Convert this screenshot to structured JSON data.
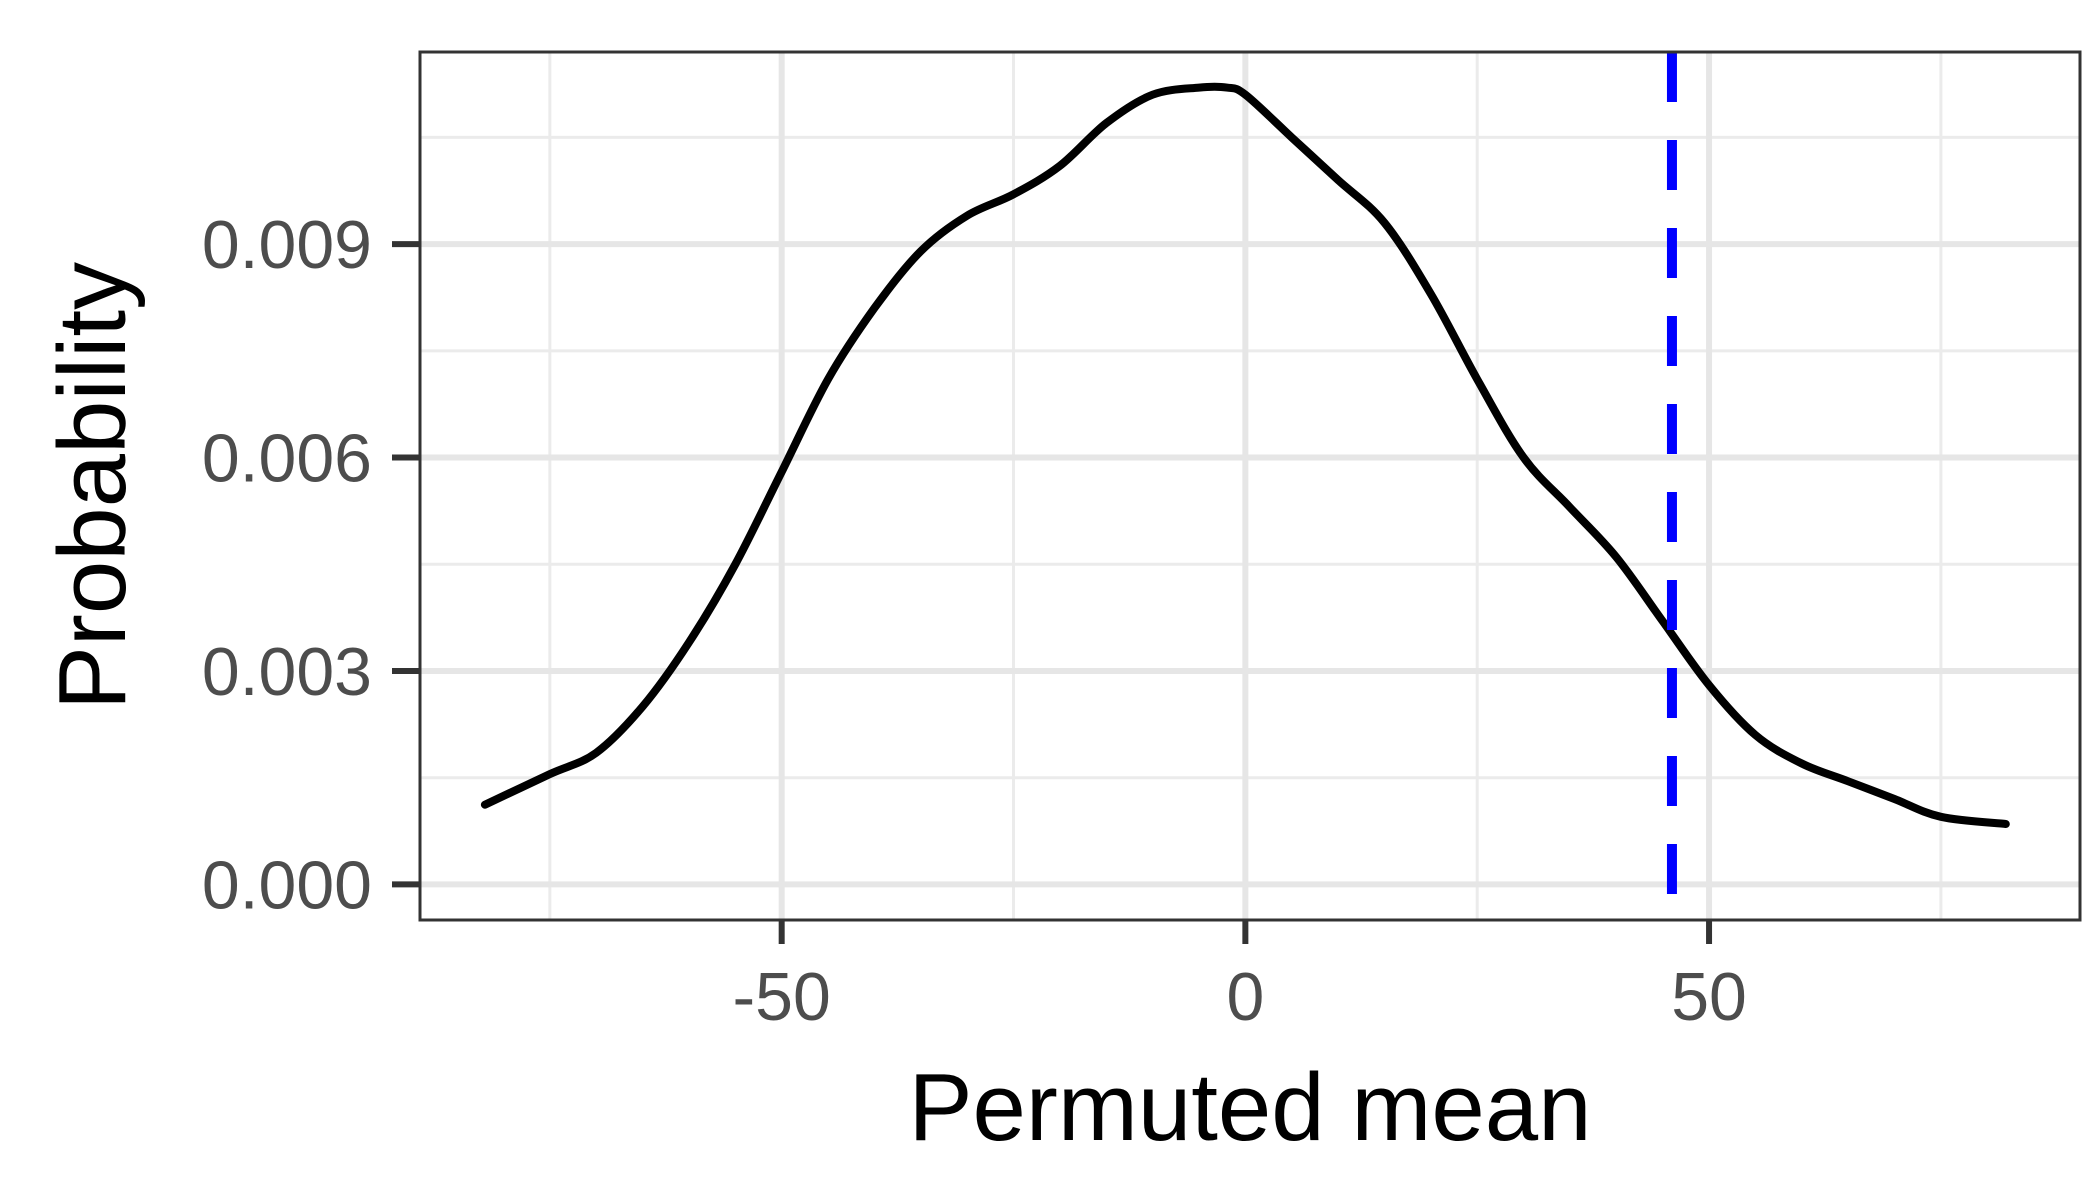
{
  "chart_data": {
    "type": "line",
    "title": "",
    "xlabel": "Permuted mean",
    "ylabel": "Probability",
    "xlim": [
      -89,
      90
    ],
    "ylim": [
      -0.0005,
      0.0117
    ],
    "x_ticks": [
      -50,
      0,
      50
    ],
    "x_tick_labels": [
      "-50",
      "0",
      "50"
    ],
    "y_ticks": [
      0.0,
      0.003,
      0.006,
      0.009
    ],
    "y_tick_labels": [
      "0.000",
      "0.003",
      "0.006",
      "0.009"
    ],
    "grid": true,
    "legend": "none",
    "series": [
      {
        "color": "#000000",
        "x": [
          -82,
          -75,
          -70,
          -65,
          -60,
          -55,
          -50,
          -45,
          -40,
          -35,
          -30,
          -25,
          -20,
          -15,
          -10,
          -5,
          -2,
          0,
          5,
          10,
          15,
          20,
          25,
          30,
          35,
          40,
          45,
          50,
          55,
          60,
          65,
          70,
          75,
          82
        ],
        "y": [
          0.00112,
          0.00155,
          0.00185,
          0.0025,
          0.0034,
          0.0045,
          0.0058,
          0.0071,
          0.0081,
          0.0089,
          0.0094,
          0.0097,
          0.0101,
          0.0107,
          0.0111,
          0.0112,
          0.0112,
          0.0111,
          0.0105,
          0.0099,
          0.0093,
          0.0083,
          0.0071,
          0.006,
          0.0053,
          0.0046,
          0.0037,
          0.0028,
          0.0021,
          0.0017,
          0.00145,
          0.0012,
          0.00095,
          0.00085
        ]
      }
    ],
    "reference_lines": [
      {
        "axis": "x",
        "value": 46,
        "color": "#0000ff",
        "style": "dashed"
      }
    ]
  }
}
